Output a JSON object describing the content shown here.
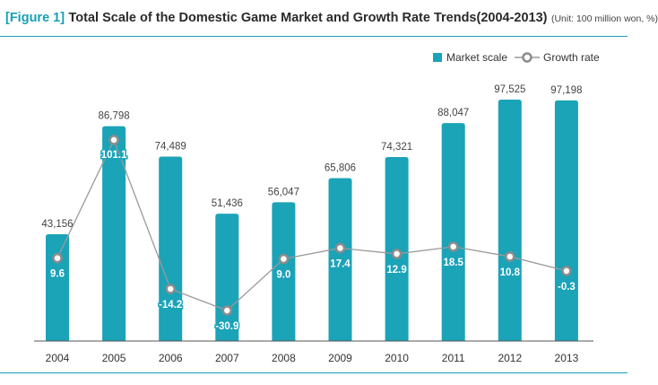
{
  "title": {
    "figure_label": "[Figure 1]",
    "main": "Total Scale of the Domestic Game Market and Growth Rate Trends(2004-2013)",
    "unit": "(Unit: 100 million won, %)"
  },
  "colors": {
    "accent": "#17a0b4",
    "bar": "#1ba3b8",
    "line": "#9a9a9a",
    "marker_fill": "#ffffff",
    "marker_stroke": "#8c8c8c"
  },
  "chart_data": {
    "type": "bar",
    "categories": [
      "2004",
      "2005",
      "2006",
      "2007",
      "2008",
      "2009",
      "2010",
      "2011",
      "2012",
      "2013"
    ],
    "series": [
      {
        "name": "Market scale",
        "type": "bar",
        "values": [
          43156,
          86798,
          74489,
          51436,
          56047,
          65806,
          74321,
          88047,
          97525,
          97198
        ],
        "labels": [
          "43,156",
          "86,798",
          "74,489",
          "51,436",
          "56,047",
          "65,806",
          "74,321",
          "88,047",
          "97,525",
          "97,198"
        ]
      },
      {
        "name": "Growth rate",
        "type": "line",
        "values": [
          9.6,
          101.1,
          -14.2,
          -30.9,
          9.0,
          17.4,
          12.9,
          18.5,
          10.8,
          -0.3
        ],
        "labels": [
          "9.6",
          "101.1",
          "-14.2",
          "-30.9",
          "9.0",
          "17.4",
          "12.9",
          "18.5",
          "10.8",
          "-0.3"
        ]
      }
    ],
    "legend": {
      "position": "top-right"
    },
    "grid": false
  }
}
